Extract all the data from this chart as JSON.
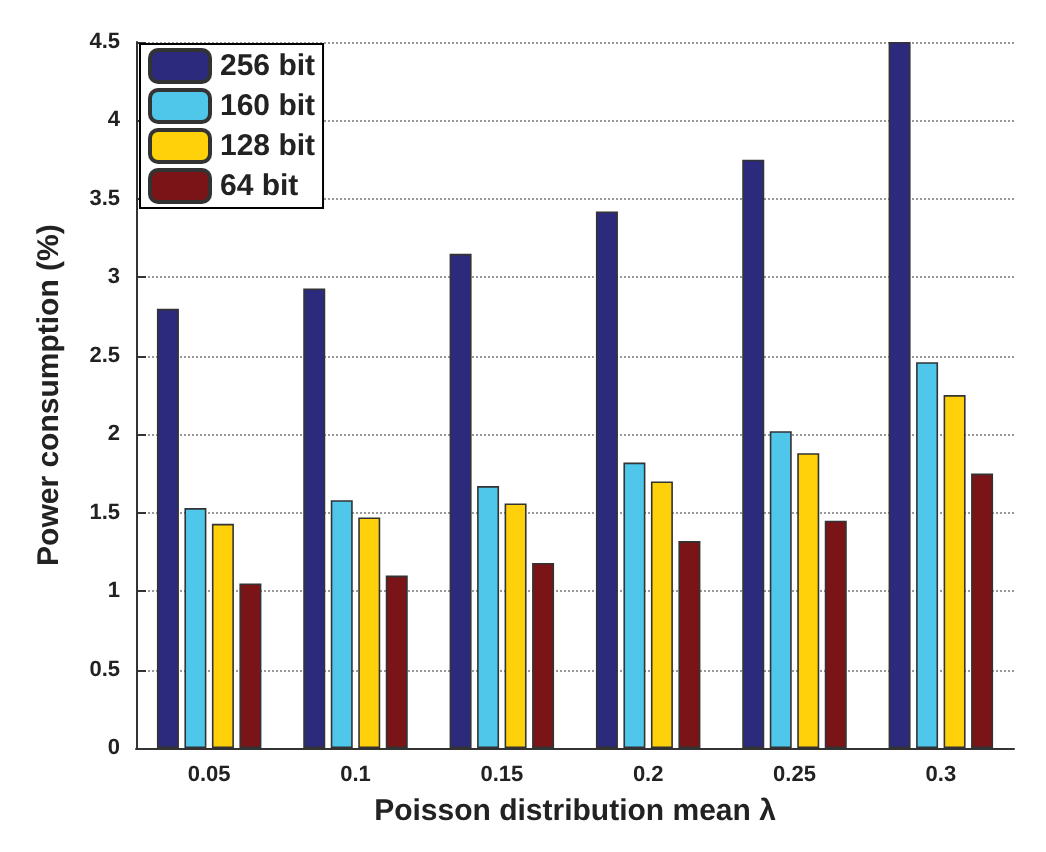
{
  "chart_data": {
    "type": "bar",
    "xlabel": "Poisson distribution mean λ",
    "ylabel": "Power consumption (%)",
    "categories": [
      "0.05",
      "0.1",
      "0.15",
      "0.2",
      "0.25",
      "0.3"
    ],
    "series": [
      {
        "name": "256 bit",
        "color": "#2b2a7d",
        "values": [
          2.8,
          2.93,
          3.15,
          3.42,
          3.75,
          4.5
        ]
      },
      {
        "name": "160 bit",
        "color": "#4fc7ea",
        "values": [
          1.53,
          1.58,
          1.67,
          1.82,
          2.02,
          2.46
        ]
      },
      {
        "name": "128 bit",
        "color": "#ffd10a",
        "values": [
          1.43,
          1.47,
          1.56,
          1.7,
          1.88,
          2.25
        ]
      },
      {
        "name": "64 bit",
        "color": "#7b1416",
        "values": [
          1.05,
          1.1,
          1.18,
          1.32,
          1.45,
          1.75
        ]
      }
    ],
    "ylim": [
      0,
      4.5
    ],
    "yticks": [
      0,
      0.5,
      1,
      1.5,
      2,
      2.5,
      3,
      3.5,
      4,
      4.5
    ],
    "grid": "y",
    "legend": "top left"
  }
}
